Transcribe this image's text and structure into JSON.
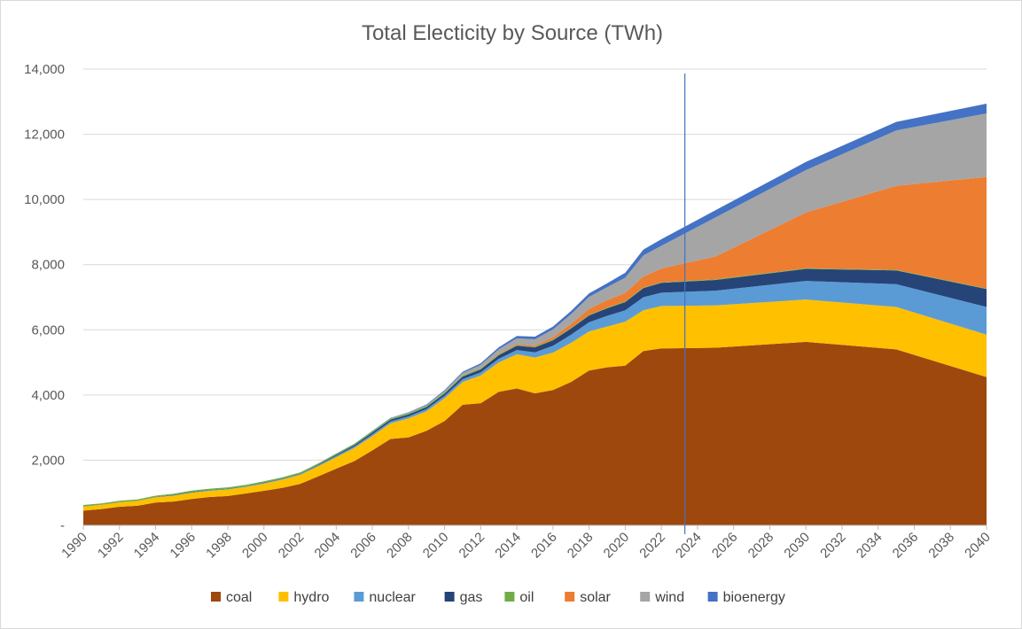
{
  "chart_data": {
    "type": "area",
    "stacked": true,
    "title": "Total Electicity by Source (TWh)",
    "xlabel": "",
    "ylabel": "",
    "ylim": [
      0,
      14000
    ],
    "y_ticks": [
      0,
      2000,
      4000,
      6000,
      8000,
      10000,
      12000,
      14000
    ],
    "y_tick_labels": [
      "-",
      "2,000",
      "4,000",
      "6,000",
      "8,000",
      "10,000",
      "12,000",
      "14,000"
    ],
    "x_tick_labels": [
      "1990",
      "1992",
      "1994",
      "1996",
      "1998",
      "2000",
      "2002",
      "2004",
      "2006",
      "2008",
      "2010",
      "2012",
      "2014",
      "2016",
      "2018",
      "2020",
      "2022",
      "2024",
      "2026",
      "2028",
      "2030",
      "2032",
      "2034",
      "2036",
      "2038",
      "2040"
    ],
    "x": [
      1990,
      1991,
      1992,
      1993,
      1994,
      1995,
      1996,
      1997,
      1998,
      1999,
      2000,
      2001,
      2002,
      2003,
      2004,
      2005,
      2006,
      2007,
      2008,
      2009,
      2010,
      2011,
      2012,
      2013,
      2014,
      2015,
      2016,
      2017,
      2018,
      2019,
      2020,
      2021,
      2022,
      2025,
      2030,
      2035,
      2040
    ],
    "grid": true,
    "legend_position": "bottom",
    "vertical_marker_x": 2023.3,
    "series": [
      {
        "name": "coal",
        "color": "#9e480e",
        "values": [
          450,
          500,
          570,
          600,
          700,
          730,
          810,
          870,
          900,
          980,
          1060,
          1150,
          1270,
          1500,
          1740,
          1970,
          2300,
          2650,
          2700,
          2900,
          3200,
          3700,
          3750,
          4100,
          4200,
          4050,
          4150,
          4400,
          4750,
          4850,
          4900,
          5350,
          5430,
          5450,
          5630,
          5400,
          4550
        ]
      },
      {
        "name": "hydro",
        "color": "#ffc000",
        "values": [
          130,
          130,
          140,
          150,
          160,
          180,
          190,
          190,
          200,
          200,
          220,
          250,
          280,
          310,
          350,
          400,
          440,
          480,
          580,
          600,
          700,
          700,
          850,
          900,
          1050,
          1100,
          1150,
          1200,
          1200,
          1250,
          1350,
          1250,
          1300,
          1300,
          1300,
          1300,
          1300
        ]
      },
      {
        "name": "nuclear",
        "color": "#5b9bd5",
        "values": [
          0,
          0,
          0,
          0,
          5,
          10,
          15,
          15,
          15,
          15,
          20,
          20,
          25,
          30,
          40,
          50,
          55,
          60,
          65,
          70,
          75,
          85,
          95,
          110,
          130,
          160,
          210,
          250,
          280,
          330,
          350,
          400,
          410,
          450,
          570,
          700,
          850
        ]
      },
      {
        "name": "gas",
        "color": "#264478",
        "values": [
          5,
          5,
          5,
          5,
          5,
          10,
          10,
          10,
          10,
          10,
          10,
          10,
          10,
          20,
          30,
          40,
          50,
          50,
          55,
          60,
          70,
          80,
          90,
          110,
          130,
          150,
          170,
          190,
          210,
          230,
          250,
          280,
          300,
          330,
          370,
          420,
          550
        ]
      },
      {
        "name": "oil",
        "color": "#70ad47",
        "values": [
          40,
          40,
          40,
          40,
          40,
          40,
          40,
          40,
          40,
          40,
          40,
          40,
          40,
          40,
          40,
          40,
          40,
          35,
          35,
          30,
          30,
          30,
          30,
          25,
          20,
          20,
          20,
          20,
          20,
          20,
          20,
          20,
          20,
          20,
          20,
          20,
          20
        ]
      },
      {
        "name": "solar",
        "color": "#ed7d31",
        "values": [
          0,
          0,
          0,
          0,
          0,
          0,
          0,
          0,
          0,
          0,
          0,
          0,
          0,
          0,
          0,
          0,
          0,
          0,
          0,
          0,
          0,
          5,
          10,
          20,
          30,
          40,
          70,
          120,
          180,
          230,
          260,
          330,
          420,
          700,
          1710,
          2580,
          3420
        ]
      },
      {
        "name": "wind",
        "color": "#a5a5a5",
        "values": [
          0,
          0,
          0,
          0,
          0,
          0,
          0,
          0,
          0,
          0,
          0,
          0,
          0,
          0,
          0,
          0,
          5,
          10,
          20,
          30,
          50,
          75,
          100,
          140,
          180,
          190,
          240,
          300,
          370,
          400,
          470,
          650,
          700,
          1200,
          1300,
          1700,
          1950
        ]
      },
      {
        "name": "bioenergy",
        "color": "#4472c4",
        "values": [
          0,
          0,
          0,
          0,
          0,
          0,
          0,
          0,
          0,
          0,
          0,
          0,
          0,
          0,
          5,
          5,
          10,
          10,
          15,
          20,
          30,
          40,
          50,
          60,
          70,
          80,
          90,
          100,
          110,
          120,
          150,
          180,
          200,
          220,
          250,
          260,
          300
        ]
      }
    ]
  }
}
